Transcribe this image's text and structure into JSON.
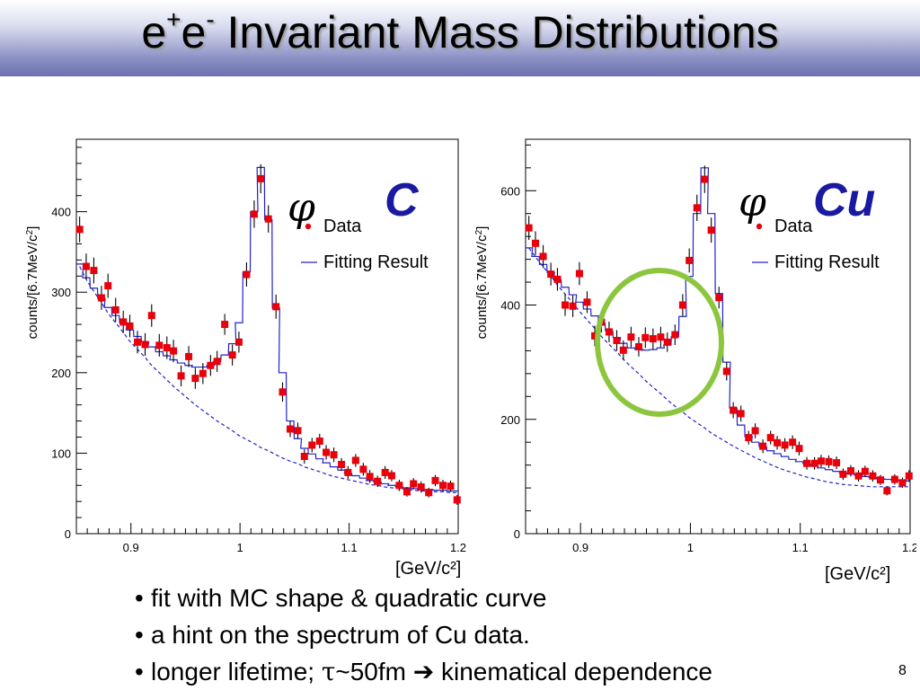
{
  "title": {
    "prefix": "e",
    "sup1": "+",
    "mid": "e",
    "sup2": "-",
    "rest": " Invariant Mass Distributions"
  },
  "page_number": "8",
  "bullets": [
    {
      "text": "fit with MC shape & quadratic curve"
    },
    {
      "text": "a hint on the spectrum of Cu data."
    },
    {
      "pre": "longer lifetime; ",
      "tau": "τ",
      "post": "~50fm ",
      "arrow": "➔",
      "tail": " kinematical dependence"
    }
  ],
  "colors": {
    "data": "#e8000a",
    "fit": "#2222cc",
    "ellipse": "#8cc63f"
  },
  "chart_data": [
    {
      "type": "scatter",
      "ylabel": "counts/[6.7MeV/c²]",
      "xunit": "[GeV/c²]",
      "phi": "φ",
      "target": "C",
      "legend": [
        {
          "label": "Data"
        },
        {
          "label": "Fitting Result"
        }
      ],
      "legend_position": "top-right",
      "xlim": [
        0.85,
        1.2
      ],
      "ylim": [
        0,
        490
      ],
      "xticks": [
        "0.9",
        "1",
        "1.1",
        "1.2"
      ],
      "yticks": [
        "0",
        "100",
        "200",
        "300",
        "400"
      ],
      "x": [
        0.853,
        0.859,
        0.866,
        0.873,
        0.879,
        0.886,
        0.893,
        0.899,
        0.906,
        0.913,
        0.919,
        0.926,
        0.933,
        0.939,
        0.946,
        0.953,
        0.959,
        0.966,
        0.973,
        0.979,
        0.986,
        0.993,
        0.999,
        1.006,
        1.013,
        1.019,
        1.026,
        1.033,
        1.039,
        1.046,
        1.053,
        1.059,
        1.066,
        1.073,
        1.079,
        1.086,
        1.093,
        1.099,
        1.106,
        1.113,
        1.119,
        1.126,
        1.133,
        1.139,
        1.146,
        1.153,
        1.159,
        1.166,
        1.173,
        1.179,
        1.186,
        1.193,
        1.199
      ],
      "y": [
        378,
        332,
        327,
        293,
        308,
        278,
        263,
        258,
        238,
        235,
        271,
        234,
        231,
        227,
        196,
        220,
        193,
        199,
        209,
        214,
        260,
        222,
        238,
        322,
        397,
        441,
        391,
        282,
        176,
        130,
        128,
        96,
        110,
        115,
        101,
        98,
        86,
        76,
        91,
        80,
        71,
        65,
        76,
        72,
        60,
        52,
        62,
        58,
        51,
        66,
        60,
        59,
        42
      ],
      "y_err": [
        16,
        16,
        16,
        15,
        15,
        15,
        14,
        14,
        14,
        14,
        14,
        14,
        14,
        14,
        13,
        13,
        13,
        13,
        13,
        13,
        13,
        13,
        13,
        15,
        17,
        18,
        17,
        15,
        12,
        10,
        10,
        9,
        9,
        9,
        9,
        9,
        8,
        8,
        8,
        8,
        8,
        7,
        8,
        7,
        7,
        6,
        7,
        7,
        6,
        7,
        7,
        7,
        6
      ],
      "fit": [
        335,
        318,
        305,
        292,
        281,
        271,
        262,
        253,
        245,
        238,
        232,
        226,
        221,
        216,
        212,
        209,
        207,
        207,
        209,
        214,
        222,
        236,
        262,
        325,
        400,
        455,
        390,
        280,
        200,
        140,
        118,
        106,
        99,
        93,
        88,
        83,
        79,
        75,
        72,
        69,
        66,
        64,
        62,
        60,
        58,
        57,
        56,
        55,
        55,
        54,
        54,
        53,
        53
      ],
      "background": [
        332,
        316,
        301,
        287,
        274,
        262,
        250,
        239,
        229,
        219,
        209,
        200,
        191,
        183,
        175,
        167,
        160,
        153,
        146,
        140,
        134,
        128,
        122,
        117,
        112,
        107,
        103,
        98,
        94,
        90,
        87,
        83,
        80,
        77,
        74,
        71,
        69,
        67,
        65,
        63,
        61,
        60,
        58,
        57,
        56,
        55,
        54,
        53,
        53,
        52,
        52,
        51,
        51
      ]
    },
    {
      "type": "scatter",
      "ylabel": "counts/[6.7MeV/c²]",
      "xunit": "[GeV/c²]",
      "phi": "φ",
      "target": "Cu",
      "legend": [
        {
          "label": "Data"
        },
        {
          "label": "Fitting Result"
        }
      ],
      "legend_position": "top-right",
      "xlim": [
        0.85,
        1.2
      ],
      "ylim": [
        0,
        690
      ],
      "xticks": [
        "0.9",
        "1",
        "1.1",
        "1.2"
      ],
      "yticks": [
        "0",
        "200",
        "400",
        "600"
      ],
      "x": [
        0.853,
        0.859,
        0.866,
        0.873,
        0.879,
        0.886,
        0.893,
        0.899,
        0.906,
        0.913,
        0.919,
        0.926,
        0.933,
        0.939,
        0.946,
        0.953,
        0.959,
        0.966,
        0.973,
        0.979,
        0.986,
        0.993,
        0.999,
        1.006,
        1.013,
        1.019,
        1.026,
        1.033,
        1.039,
        1.046,
        1.053,
        1.059,
        1.066,
        1.073,
        1.079,
        1.086,
        1.093,
        1.099,
        1.106,
        1.113,
        1.119,
        1.126,
        1.133,
        1.139,
        1.146,
        1.153,
        1.159,
        1.166,
        1.173,
        1.179,
        1.186,
        1.193,
        1.199
      ],
      "y": [
        535,
        508,
        485,
        454,
        445,
        400,
        398,
        455,
        405,
        346,
        370,
        353,
        338,
        321,
        344,
        327,
        343,
        341,
        344,
        335,
        348,
        400,
        478,
        570,
        620,
        531,
        413,
        284,
        216,
        210,
        168,
        180,
        153,
        168,
        159,
        155,
        160,
        149,
        123,
        123,
        127,
        126,
        124,
        104,
        110,
        101,
        109,
        101,
        94,
        75,
        95,
        89,
        101
      ],
      "y_err": [
        21,
        21,
        20,
        20,
        20,
        19,
        19,
        20,
        19,
        18,
        18,
        18,
        18,
        17,
        18,
        17,
        18,
        18,
        18,
        17,
        18,
        19,
        21,
        23,
        24,
        22,
        19,
        16,
        14,
        14,
        12,
        13,
        12,
        12,
        12,
        12,
        12,
        12,
        11,
        11,
        11,
        11,
        11,
        10,
        10,
        10,
        10,
        10,
        9,
        8,
        9,
        9,
        10
      ],
      "fit": [
        500,
        485,
        471,
        457,
        444,
        431,
        418,
        405,
        393,
        381,
        368,
        355,
        343,
        333,
        325,
        322,
        321,
        322,
        325,
        330,
        345,
        380,
        450,
        560,
        640,
        560,
        420,
        300,
        220,
        190,
        170,
        160,
        152,
        145,
        140,
        135,
        130,
        126,
        122,
        118,
        115,
        112,
        109,
        106,
        104,
        102,
        100,
        98,
        96,
        95,
        94,
        93,
        92
      ],
      "background": [
        500,
        484,
        467,
        451,
        435,
        419,
        404,
        389,
        374,
        359,
        345,
        331,
        318,
        305,
        292,
        280,
        268,
        256,
        245,
        234,
        223,
        213,
        203,
        194,
        185,
        176,
        168,
        160,
        153,
        146,
        139,
        133,
        127,
        121,
        116,
        111,
        107,
        103,
        99,
        96,
        93,
        90,
        88,
        86,
        85,
        84,
        83,
        82,
        82,
        82,
        82,
        82,
        82
      ]
    }
  ]
}
